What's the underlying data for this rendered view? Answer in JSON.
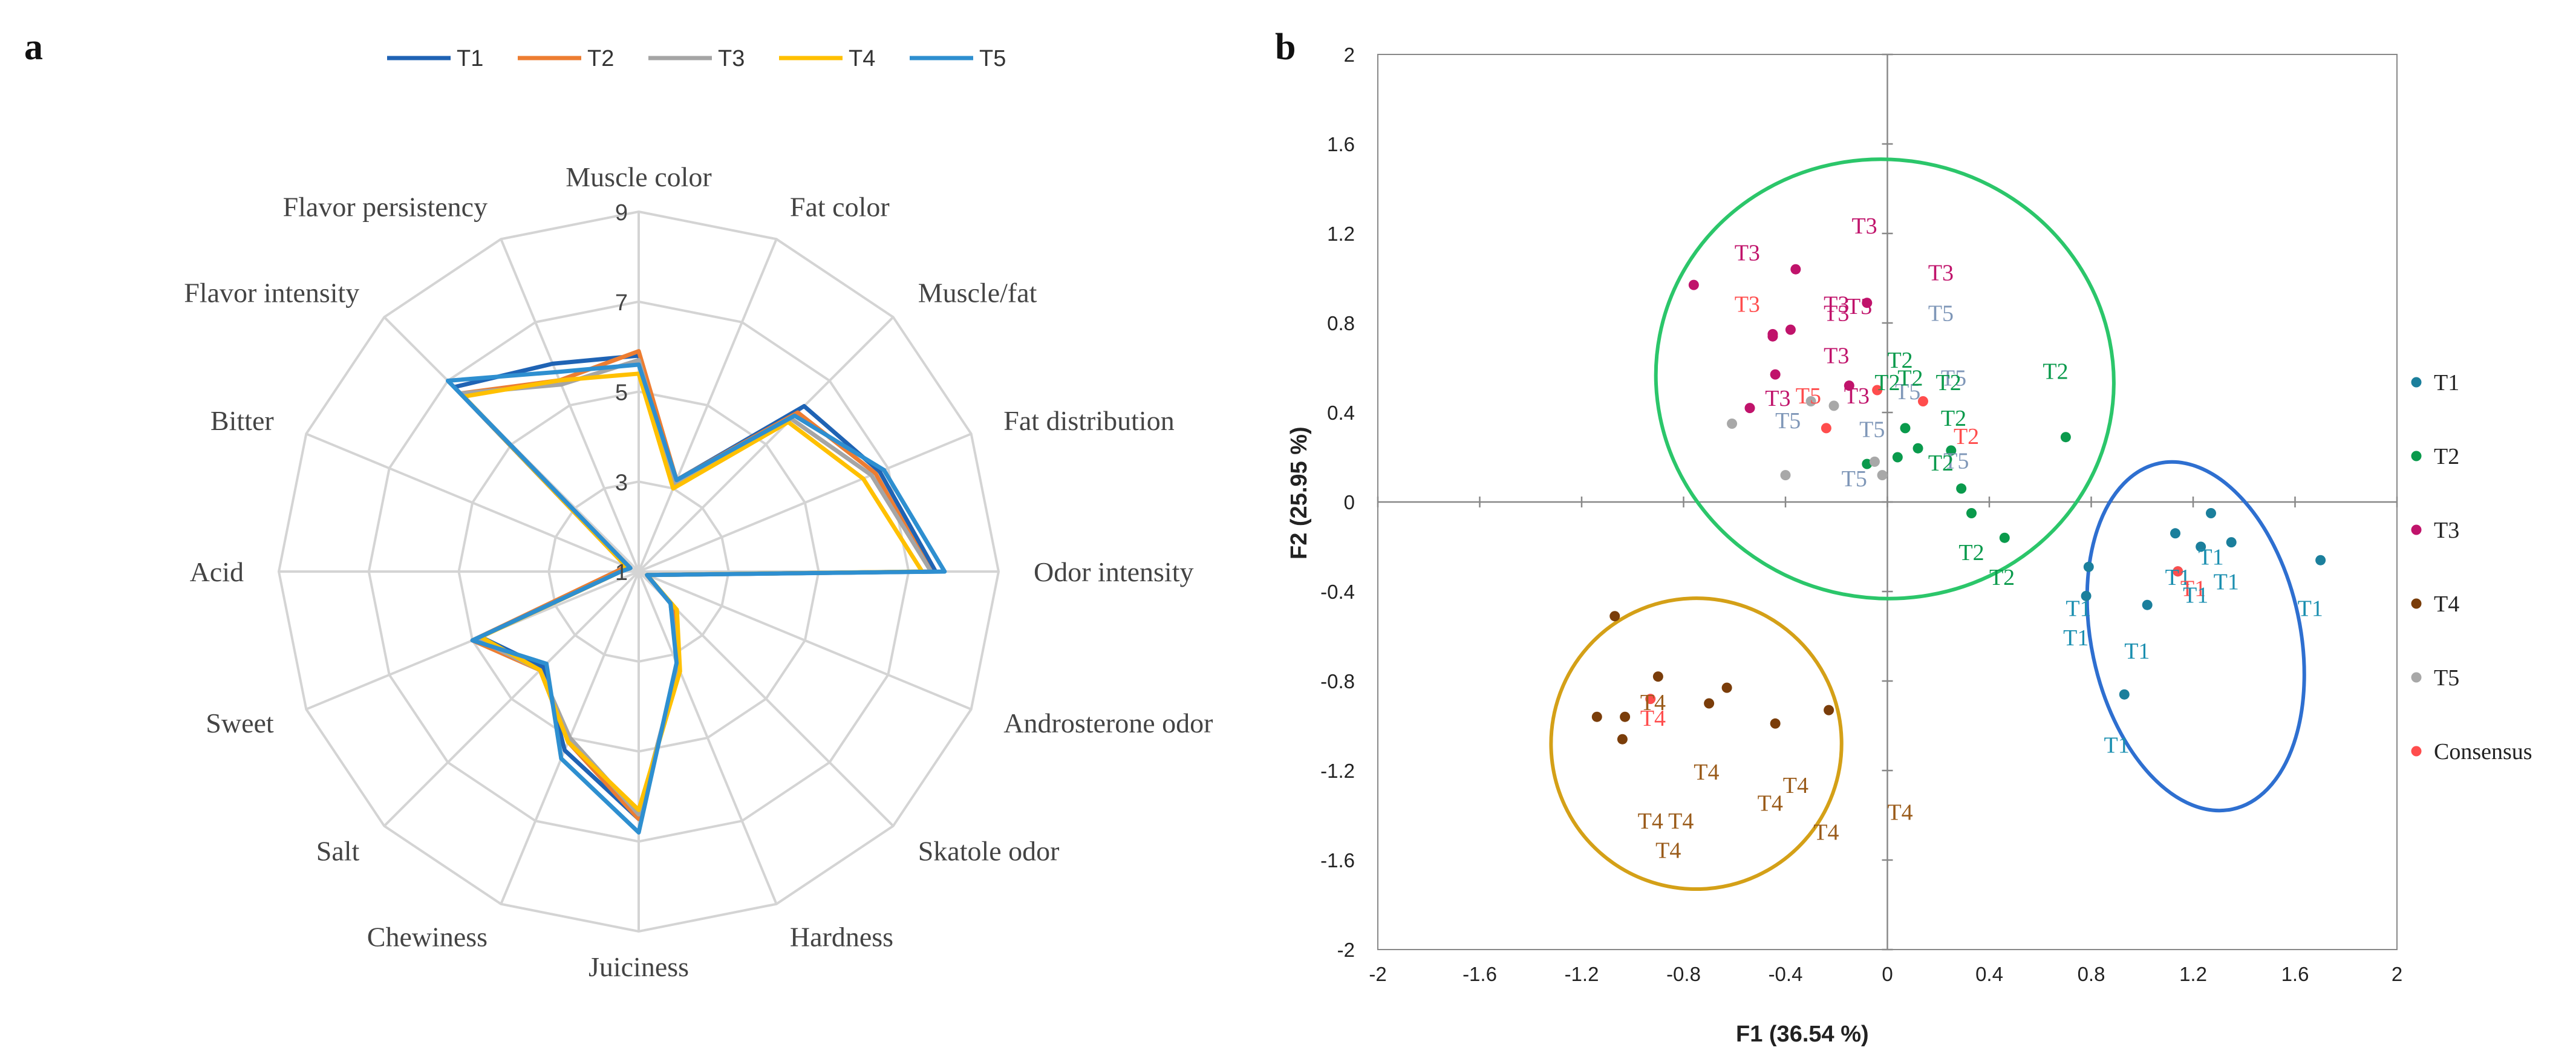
{
  "panel_a_label": "a",
  "panel_b_label": "b",
  "colors": {
    "T1": "#1f63b4",
    "T2": "#ed7d31",
    "T3": "#a5a5a5",
    "T4": "#ffc000",
    "T5": "#2e8fd0",
    "pca_T1": "#1b7f9c",
    "pca_T2": "#0a9a4c",
    "pca_T3": "#c0136b",
    "pca_T4": "#7a3d0a",
    "pca_T5": "#a8a8a8",
    "pca_label_T1": "#1b8fb0",
    "pca_label_T2": "#0a9a4c",
    "pca_label_T3": "#c0136b",
    "pca_label_T4": "#9a5b1a",
    "pca_label_T5": "#7f97b8",
    "consensus": "#ff4d4d",
    "ellipse_green": "#2bc66a",
    "ellipse_blue": "#2e6fd0",
    "ellipse_orange": "#d4a017",
    "grid": "#d4d4d4",
    "axis": "#888888"
  },
  "chart_data": [
    {
      "type": "radar",
      "legend_position": "top",
      "axes": [
        "Muscle color",
        "Fat color",
        "Muscle/fat",
        "Fat distribution",
        "Odor intensity",
        "Androsterone odor",
        "Skatole odor",
        "Hardness",
        "Juiciness",
        "Chewiness",
        "Salt",
        "Sweet",
        "Acid",
        "Bitter",
        "Flavor intensity",
        "Flavor persistency"
      ],
      "ticks": [
        1,
        3,
        5,
        7,
        9
      ],
      "tick_labels": [
        "1",
        "3",
        "5",
        "7",
        "9"
      ],
      "range": [
        1,
        9
      ],
      "series": [
        {
          "name": "T1",
          "values": [
            5.8,
            3.2,
            6.2,
            6.8,
            7.6,
            1.2,
            2.0,
            3.3,
            6.5,
            5.3,
            4.0,
            4.8,
            1.5,
            1.3,
            6.8,
            6.0
          ]
        },
        {
          "name": "T2",
          "values": [
            5.9,
            3.2,
            6.0,
            6.7,
            7.5,
            1.2,
            2.1,
            3.3,
            6.5,
            5.1,
            4.1,
            5.0,
            1.5,
            1.3,
            6.6,
            5.6
          ]
        },
        {
          "name": "T3",
          "values": [
            5.7,
            3.1,
            5.8,
            6.6,
            7.5,
            1.2,
            2.0,
            3.3,
            6.4,
            5.0,
            4.1,
            4.9,
            1.4,
            1.2,
            6.6,
            5.5
          ]
        },
        {
          "name": "T4",
          "values": [
            5.4,
            3.0,
            5.7,
            6.4,
            7.3,
            1.2,
            2.2,
            3.4,
            6.3,
            5.1,
            4.1,
            4.8,
            1.4,
            1.3,
            6.5,
            5.6
          ]
        },
        {
          "name": "T5",
          "values": [
            5.6,
            3.2,
            5.9,
            6.9,
            7.8,
            1.2,
            2.0,
            3.2,
            6.8,
            5.5,
            3.9,
            5.0,
            1.4,
            1.2,
            7.0,
            5.8
          ]
        }
      ]
    },
    {
      "type": "scatter",
      "xlabel": "F1 (36.54 %)",
      "ylabel": "F2 (25.95 %)",
      "xlim": [
        -2,
        2
      ],
      "ylim": [
        -2,
        2
      ],
      "xticks": [
        -2,
        -1.6,
        -1.2,
        -0.8,
        -0.4,
        0,
        0.4,
        0.8,
        1.2,
        1.6,
        2
      ],
      "xtick_labels": [
        "-2",
        "-1.6",
        "-1.2",
        "-0.8",
        "-0.4",
        "0",
        "0.4",
        "0.8",
        "1.2",
        "1.6",
        "2"
      ],
      "yticks": [
        -2,
        -1.6,
        -1.2,
        -0.8,
        -0.4,
        0,
        0.4,
        0.8,
        1.2,
        1.6,
        2
      ],
      "ytick_labels": [
        "-2",
        "-1.6",
        "-1.2",
        "-0.8",
        "-0.4",
        "0",
        "0.4",
        "0.8",
        "1.2",
        "1.6",
        "2"
      ],
      "legend_position": "right",
      "legend": [
        "T1",
        "T2",
        "T3",
        "T4",
        "T5",
        "Consensus"
      ],
      "series": [
        {
          "name": "T1",
          "points": [
            [
              1.27,
              -0.05
            ],
            [
              1.13,
              -0.14
            ],
            [
              1.35,
              -0.18
            ],
            [
              1.23,
              -0.2
            ],
            [
              1.7,
              -0.26
            ],
            [
              0.79,
              -0.29
            ],
            [
              1.14,
              -0.31
            ],
            [
              0.78,
              -0.42
            ],
            [
              1.02,
              -0.46
            ],
            [
              0.93,
              -0.86
            ]
          ]
        },
        {
          "name": "T2",
          "points": [
            [
              0.7,
              0.29
            ],
            [
              0.07,
              0.33
            ],
            [
              0.12,
              0.24
            ],
            [
              0.25,
              0.23
            ],
            [
              0.04,
              0.2
            ],
            [
              -0.08,
              0.17
            ],
            [
              0.29,
              0.06
            ],
            [
              0.33,
              -0.05
            ],
            [
              0.46,
              -0.16
            ]
          ]
        },
        {
          "name": "T3",
          "points": [
            [
              -0.76,
              0.97
            ],
            [
              -0.36,
              1.04
            ],
            [
              -0.08,
              0.89
            ],
            [
              -0.38,
              0.77
            ],
            [
              -0.45,
              0.74
            ],
            [
              -0.45,
              0.75
            ],
            [
              -0.44,
              0.57
            ],
            [
              -0.54,
              0.42
            ],
            [
              -0.15,
              0.52
            ]
          ]
        },
        {
          "name": "T4",
          "points": [
            [
              -1.07,
              -0.51
            ],
            [
              -0.9,
              -0.78
            ],
            [
              -0.63,
              -0.83
            ],
            [
              -0.7,
              -0.9
            ],
            [
              -1.14,
              -0.96
            ],
            [
              -1.03,
              -0.96
            ],
            [
              -0.44,
              -0.99
            ],
            [
              -0.23,
              -0.93
            ],
            [
              -1.04,
              -1.06
            ]
          ]
        },
        {
          "name": "T5",
          "points": [
            [
              -0.3,
              0.45
            ],
            [
              -0.21,
              0.43
            ],
            [
              -0.61,
              0.35
            ],
            [
              -0.05,
              0.18
            ],
            [
              -0.4,
              0.12
            ],
            [
              -0.02,
              0.12
            ]
          ]
        },
        {
          "name": "Consensus",
          "points": [
            [
              -0.04,
              0.5
            ],
            [
              0.14,
              0.45
            ],
            [
              -0.24,
              0.33
            ],
            [
              1.14,
              -0.31
            ],
            [
              -0.93,
              -0.88
            ]
          ]
        }
      ],
      "observation_labels": [
        {
          "text": "T3",
          "group": "T3",
          "x": -0.09,
          "y": 1.2,
          "consensus": false
        },
        {
          "text": "T3",
          "group": "T3",
          "x": -0.55,
          "y": 1.08,
          "consensus": false
        },
        {
          "text": "T3",
          "group": "T3",
          "x": 0.21,
          "y": 0.99,
          "consensus": false
        },
        {
          "text": "T3",
          "group": "T3",
          "x": -0.55,
          "y": 0.85,
          "consensus": true
        },
        {
          "text": "T3",
          "group": "T3",
          "x": -0.2,
          "y": 0.85,
          "consensus": false
        },
        {
          "text": "T3",
          "group": "T3",
          "x": -0.11,
          "y": 0.84,
          "consensus": false
        },
        {
          "text": "T3",
          "group": "T3",
          "x": -0.2,
          "y": 0.81,
          "consensus": false
        },
        {
          "text": "T3",
          "group": "T3",
          "x": -0.2,
          "y": 0.62,
          "consensus": false
        },
        {
          "text": "T3",
          "group": "T3",
          "x": -0.43,
          "y": 0.43,
          "consensus": false
        },
        {
          "text": "T3",
          "group": "T3",
          "x": -0.12,
          "y": 0.44,
          "consensus": false
        },
        {
          "text": "T5",
          "group": "T5",
          "x": 0.21,
          "y": 0.81,
          "consensus": false
        },
        {
          "text": "T5",
          "group": "T5",
          "x": 0.26,
          "y": 0.52,
          "consensus": false
        },
        {
          "text": "T5",
          "group": "T5",
          "x": -0.31,
          "y": 0.44,
          "consensus": true
        },
        {
          "text": "T5",
          "group": "T5",
          "x": 0.08,
          "y": 0.46,
          "consensus": false
        },
        {
          "text": "T5",
          "group": "T5",
          "x": -0.39,
          "y": 0.33,
          "consensus": false
        },
        {
          "text": "T5",
          "group": "T5",
          "x": -0.06,
          "y": 0.29,
          "consensus": false
        },
        {
          "text": "T5",
          "group": "T5",
          "x": 0.27,
          "y": 0.15,
          "consensus": false
        },
        {
          "text": "T5",
          "group": "T5",
          "x": -0.13,
          "y": 0.07,
          "consensus": false
        },
        {
          "text": "T2",
          "group": "T2",
          "x": 0.05,
          "y": 0.6,
          "consensus": false
        },
        {
          "text": "T2",
          "group": "T2",
          "x": 0.0,
          "y": 0.5,
          "consensus": false
        },
        {
          "text": "T2",
          "group": "T2",
          "x": 0.09,
          "y": 0.52,
          "consensus": false
        },
        {
          "text": "T2",
          "group": "T2",
          "x": 0.24,
          "y": 0.5,
          "consensus": false
        },
        {
          "text": "T2",
          "group": "T2",
          "x": 0.66,
          "y": 0.55,
          "consensus": false
        },
        {
          "text": "T2",
          "group": "T2",
          "x": 0.26,
          "y": 0.34,
          "consensus": false
        },
        {
          "text": "T2",
          "group": "T2",
          "x": 0.31,
          "y": 0.26,
          "consensus": true
        },
        {
          "text": "T2",
          "group": "T2",
          "x": 0.21,
          "y": 0.14,
          "consensus": false
        },
        {
          "text": "T2",
          "group": "T2",
          "x": 0.33,
          "y": -0.26,
          "consensus": false
        },
        {
          "text": "T2",
          "group": "T2",
          "x": 0.45,
          "y": -0.37,
          "consensus": false
        },
        {
          "text": "T1",
          "group": "T1",
          "x": 1.27,
          "y": -0.28,
          "consensus": false
        },
        {
          "text": "T1",
          "group": "T1",
          "x": 1.14,
          "y": -0.37,
          "consensus": false
        },
        {
          "text": "T1",
          "group": "T1",
          "x": 1.33,
          "y": -0.39,
          "consensus": false
        },
        {
          "text": "T1",
          "group": "T1",
          "x": 1.2,
          "y": -0.42,
          "consensus": true
        },
        {
          "text": "T1",
          "group": "T1",
          "x": 1.21,
          "y": -0.45,
          "consensus": false
        },
        {
          "text": "T1",
          "group": "T1",
          "x": 0.75,
          "y": -0.51,
          "consensus": false
        },
        {
          "text": "T1",
          "group": "T1",
          "x": 1.66,
          "y": -0.51,
          "consensus": false
        },
        {
          "text": "T1",
          "group": "T1",
          "x": 0.74,
          "y": -0.64,
          "consensus": false
        },
        {
          "text": "T1",
          "group": "T1",
          "x": 0.98,
          "y": -0.7,
          "consensus": false
        },
        {
          "text": "T1",
          "group": "T1",
          "x": 0.9,
          "y": -1.12,
          "consensus": false
        },
        {
          "text": "T4",
          "group": "T4",
          "x": -0.92,
          "y": -0.93,
          "consensus": false
        },
        {
          "text": "T4",
          "group": "T4",
          "x": -0.92,
          "y": -1.0,
          "consensus": true
        },
        {
          "text": "T4",
          "group": "T4",
          "x": -0.71,
          "y": -1.24,
          "consensus": false
        },
        {
          "text": "T4",
          "group": "T4",
          "x": -0.36,
          "y": -1.3,
          "consensus": false
        },
        {
          "text": "T4",
          "group": "T4",
          "x": -0.46,
          "y": -1.38,
          "consensus": false
        },
        {
          "text": "T4",
          "group": "T4",
          "x": 0.05,
          "y": -1.42,
          "consensus": false
        },
        {
          "text": "T4",
          "group": "T4",
          "x": -0.93,
          "y": -1.46,
          "consensus": false
        },
        {
          "text": "T4",
          "group": "T4",
          "x": -0.81,
          "y": -1.46,
          "consensus": false
        },
        {
          "text": "T4",
          "group": "T4",
          "x": -0.24,
          "y": -1.51,
          "consensus": false
        },
        {
          "text": "T4",
          "group": "T4",
          "x": -0.86,
          "y": -1.59,
          "consensus": false
        }
      ],
      "ellipses": [
        {
          "name": "T3-T2-T5 cluster",
          "cx": -0.01,
          "cy": 0.55,
          "rx": 0.9,
          "ry": 0.98,
          "rotation_deg": 11,
          "color": "ellipse_green"
        },
        {
          "name": "T1 cluster",
          "cx": 1.21,
          "cy": -0.6,
          "rx": 0.41,
          "ry": 0.79,
          "rotation_deg": -12,
          "color": "ellipse_blue"
        },
        {
          "name": "T4 cluster",
          "cx": -0.75,
          "cy": -1.08,
          "rx": 0.57,
          "ry": 0.65,
          "rotation_deg": 20,
          "color": "ellipse_orange"
        }
      ]
    }
  ]
}
